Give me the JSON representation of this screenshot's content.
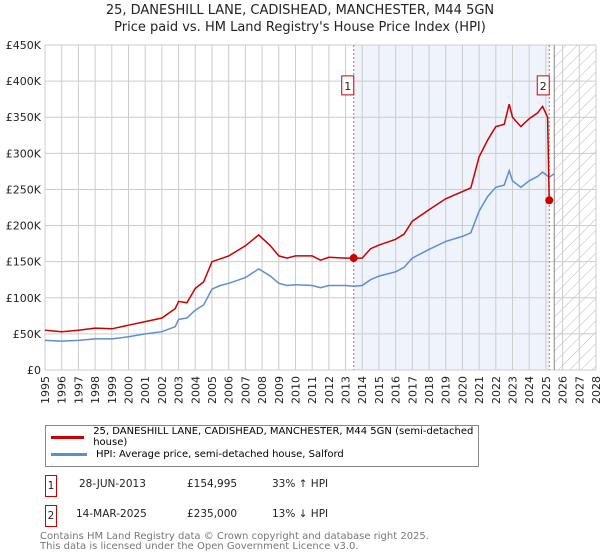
{
  "chart_data": {
    "type": "line",
    "title": "25, DANESHILL LANE, CADISHEAD, MANCHESTER, M44 5GN",
    "subtitle": "Price paid vs. HM Land Registry's House Price Index (HPI)",
    "xlim": [
      1995,
      2028
    ],
    "ylim": [
      0,
      450000
    ],
    "x_ticks": [
      "1995",
      "1996",
      "1997",
      "1998",
      "1999",
      "2000",
      "2001",
      "2002",
      "2003",
      "2004",
      "2005",
      "2006",
      "2007",
      "2008",
      "2009",
      "2010",
      "2011",
      "2012",
      "2013",
      "2014",
      "2015",
      "2016",
      "2017",
      "2018",
      "2019",
      "2020",
      "2021",
      "2022",
      "2023",
      "2024",
      "2025",
      "2026",
      "2027",
      "2028"
    ],
    "y_ticks": [
      {
        "v": 0,
        "label": "£0"
      },
      {
        "v": 50000,
        "label": "£50K"
      },
      {
        "v": 100000,
        "label": "£100K"
      },
      {
        "v": 150000,
        "label": "£150K"
      },
      {
        "v": 200000,
        "label": "£200K"
      },
      {
        "v": 250000,
        "label": "£250K"
      },
      {
        "v": 300000,
        "label": "£300K"
      },
      {
        "v": 350000,
        "label": "£350K"
      },
      {
        "v": 400000,
        "label": "£400K"
      },
      {
        "v": 450000,
        "label": "£450K"
      }
    ],
    "grid": true,
    "shaded_range": [
      2013.49,
      2025.2
    ],
    "forecast_hatch_from": 2025.5,
    "series": [
      {
        "name": "25, DANESHILL LANE, CADISHEAD, MANCHESTER, M44 5GN (semi-detached house)",
        "color": "#cc0000",
        "x": [
          1995,
          1996,
          1997,
          1998,
          1999,
          2000,
          2001,
          2002,
          2002.8,
          2003,
          2003.5,
          2004,
          2004.5,
          2005,
          2006,
          2007,
          2007.8,
          2008.5,
          2009,
          2009.5,
          2010,
          2011,
          2011.5,
          2012,
          2013,
          2013.49,
          2014,
          2014.5,
          2015,
          2016,
          2016.5,
          2017,
          2018,
          2019,
          2020,
          2020.5,
          2021,
          2021.5,
          2022,
          2022.5,
          2022.8,
          2023,
          2023.5,
          2024,
          2024.5,
          2024.8,
          2025.1,
          2025.2
        ],
        "y": [
          55000,
          53000,
          55000,
          58000,
          57000,
          62000,
          67000,
          72000,
          85000,
          95000,
          93000,
          113000,
          122000,
          150000,
          158000,
          172000,
          187000,
          172000,
          158000,
          155000,
          158000,
          158000,
          152000,
          156000,
          155000,
          154995,
          155000,
          168000,
          173000,
          181000,
          188000,
          206000,
          222000,
          237000,
          247000,
          252000,
          295000,
          318000,
          337000,
          340000,
          368000,
          350000,
          337000,
          348000,
          356000,
          365000,
          350000,
          235000
        ]
      },
      {
        "name": "HPI: Average price, semi-detached house, Salford",
        "color": "#5b8fd4",
        "x": [
          1995,
          1996,
          1997,
          1998,
          1999,
          2000,
          2001,
          2002,
          2002.8,
          2003,
          2003.5,
          2004,
          2004.5,
          2005,
          2005.5,
          2006,
          2007,
          2007.8,
          2008.5,
          2009,
          2009.5,
          2010,
          2011,
          2011.5,
          2012,
          2013,
          2013.5,
          2014,
          2014.5,
          2015,
          2016,
          2016.5,
          2017,
          2018,
          2019,
          2020,
          2020.5,
          2021,
          2021.5,
          2022,
          2022.5,
          2022.8,
          2023,
          2023.5,
          2024,
          2024.5,
          2024.8,
          2025.2,
          2025.5
        ],
        "y": [
          41000,
          40000,
          41000,
          43000,
          43000,
          46000,
          50000,
          53000,
          60000,
          70000,
          72000,
          83000,
          90000,
          112000,
          117000,
          120000,
          128000,
          140000,
          130000,
          120000,
          117000,
          118000,
          117000,
          114000,
          117000,
          117000,
          116000,
          117000,
          125000,
          130000,
          136000,
          142000,
          155000,
          167000,
          178000,
          185000,
          190000,
          220000,
          240000,
          253000,
          256000,
          276000,
          262000,
          253000,
          262000,
          268000,
          274000,
          267000,
          272000
        ]
      }
    ],
    "annotations": [
      {
        "label": "1",
        "x": 2013.49,
        "y": 154995
      },
      {
        "label": "2",
        "x": 2025.2,
        "y": 235000
      }
    ]
  },
  "legend": {
    "item1": "25, DANESHILL LANE, CADISHEAD, MANCHESTER, M44 5GN (semi-detached house)",
    "item2": "HPI: Average price, semi-detached house, Salford"
  },
  "transactions": [
    {
      "num": "1",
      "date": "28-JUN-2013",
      "price": "£154,995",
      "hpi": "33% ↑ HPI"
    },
    {
      "num": "2",
      "date": "14-MAR-2025",
      "price": "£235,000",
      "hpi": "13% ↓ HPI"
    }
  ],
  "footer": {
    "line1": "Contains HM Land Registry data © Crown copyright and database right 2025.",
    "line2": "This data is licensed under the Open Government Licence v3.0."
  }
}
